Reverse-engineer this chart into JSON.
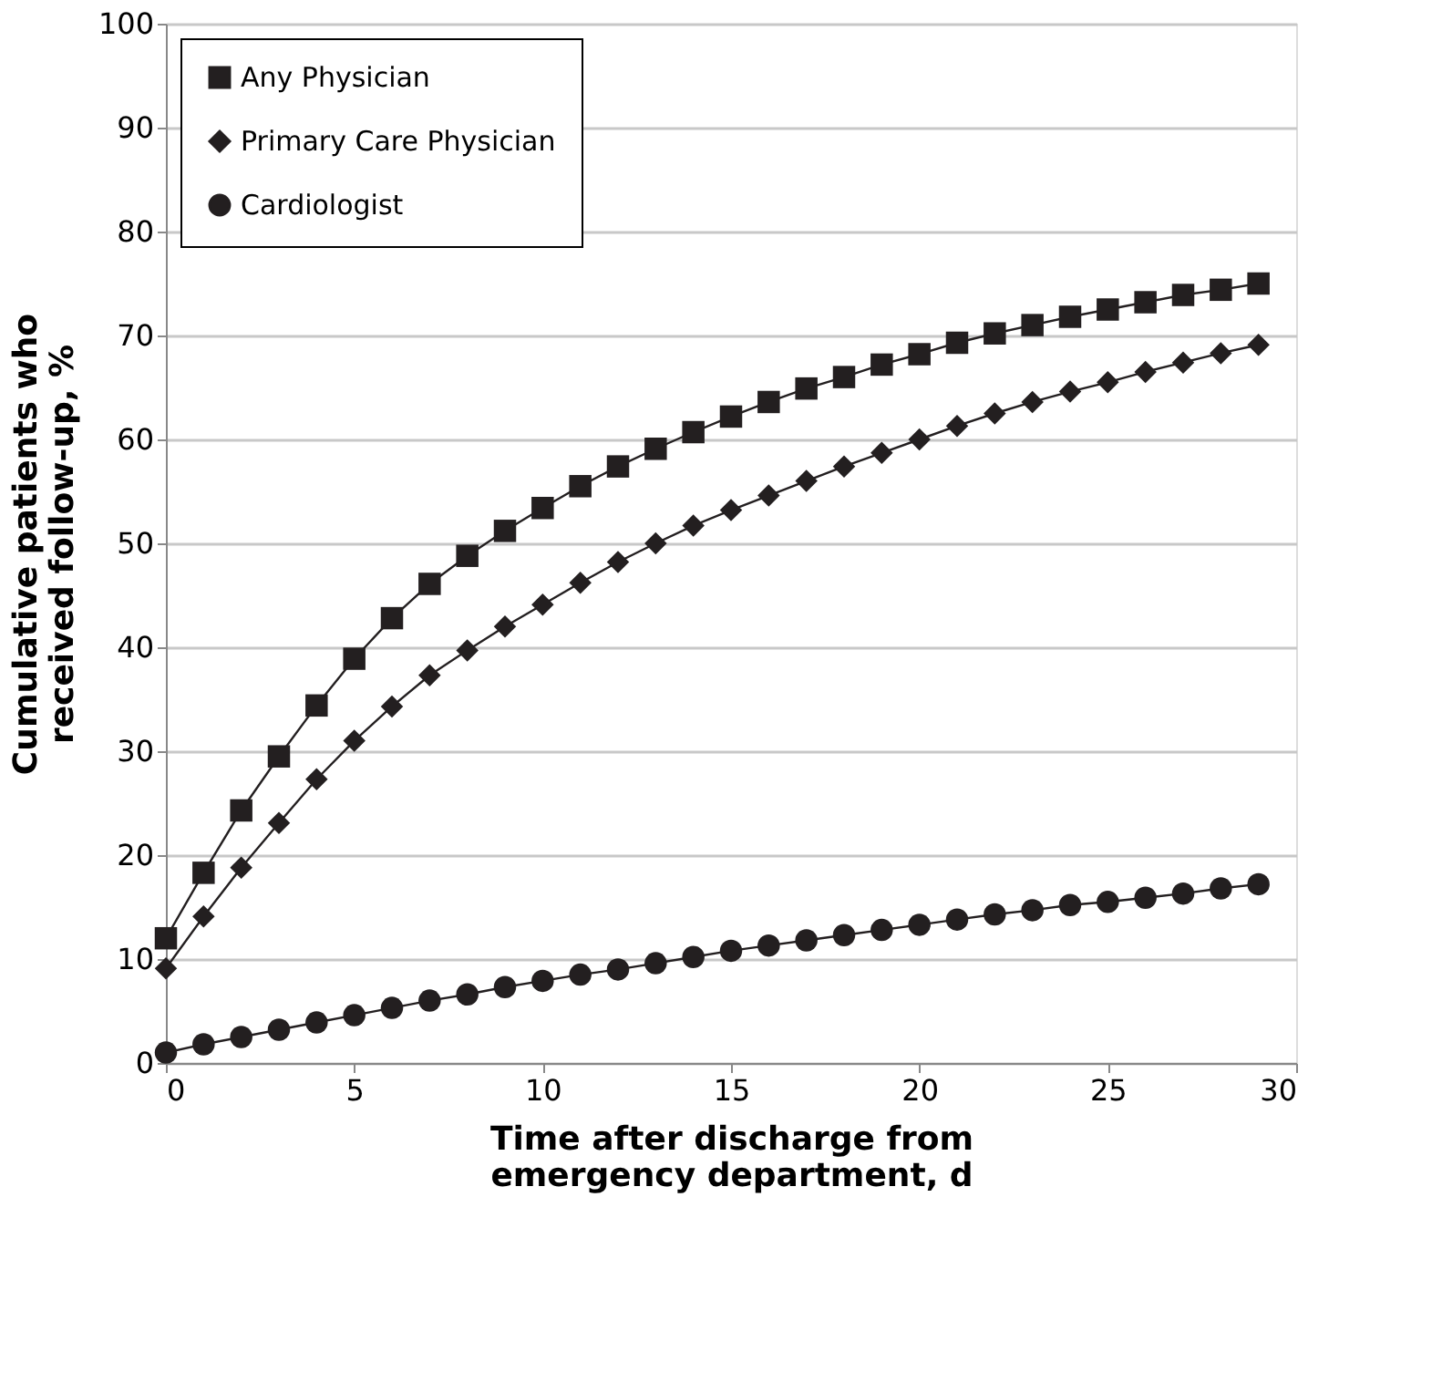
{
  "chart_data": {
    "type": "line",
    "xlabel": "Time after discharge from\nemergency department, d",
    "ylabel": "Cumulative patients who\nreceived follow-up, %",
    "x": [
      0,
      1,
      2,
      3,
      4,
      5,
      6,
      7,
      8,
      9,
      10,
      11,
      12,
      13,
      14,
      15,
      16,
      17,
      18,
      19,
      20,
      21,
      22,
      23,
      24,
      25,
      26,
      27,
      28,
      29
    ],
    "series": [
      {
        "name": "Any Physician",
        "color": "#231f20",
        "marker": "square",
        "values": [
          12,
          18.3,
          24.3,
          29.5,
          34.4,
          38.9,
          42.8,
          46.1,
          48.8,
          51.2,
          53.4,
          55.5,
          57.4,
          59.1,
          60.7,
          62.2,
          63.6,
          64.9,
          66.0,
          67.2,
          68.2,
          69.3,
          70.2,
          71.0,
          71.8,
          72.5,
          73.2,
          73.9,
          74.4,
          75.0
        ]
      },
      {
        "name": "Primary Care Physician",
        "color": "#231f20",
        "marker": "diamond",
        "values": [
          9.1,
          14.1,
          18.8,
          23.1,
          27.3,
          31.0,
          34.3,
          37.3,
          39.7,
          42.0,
          44.1,
          46.2,
          48.2,
          50.0,
          51.7,
          53.2,
          54.6,
          56.0,
          57.4,
          58.7,
          60.0,
          61.3,
          62.5,
          63.6,
          64.6,
          65.5,
          66.5,
          67.4,
          68.3,
          69.1
        ]
      },
      {
        "name": "Cardiologist",
        "color": "#231f20",
        "marker": "circle",
        "values": [
          1,
          1.8,
          2.5,
          3.2,
          3.9,
          4.6,
          5.3,
          6.0,
          6.6,
          7.3,
          7.9,
          8.5,
          9.0,
          9.6,
          10.2,
          10.8,
          11.3,
          11.8,
          12.3,
          12.8,
          13.3,
          13.8,
          14.3,
          14.7,
          15.2,
          15.5,
          15.9,
          16.3,
          16.8,
          17.2
        ]
      }
    ],
    "xlim": [
      0,
      30
    ],
    "xticks": [
      0,
      5,
      10,
      15,
      20,
      25,
      30
    ],
    "ylim": [
      0,
      100
    ],
    "yticks": [
      0,
      10,
      20,
      30,
      40,
      50,
      60,
      70,
      80,
      90,
      100
    ],
    "grid": "y",
    "legend": "top left",
    "line_style": "solid"
  }
}
